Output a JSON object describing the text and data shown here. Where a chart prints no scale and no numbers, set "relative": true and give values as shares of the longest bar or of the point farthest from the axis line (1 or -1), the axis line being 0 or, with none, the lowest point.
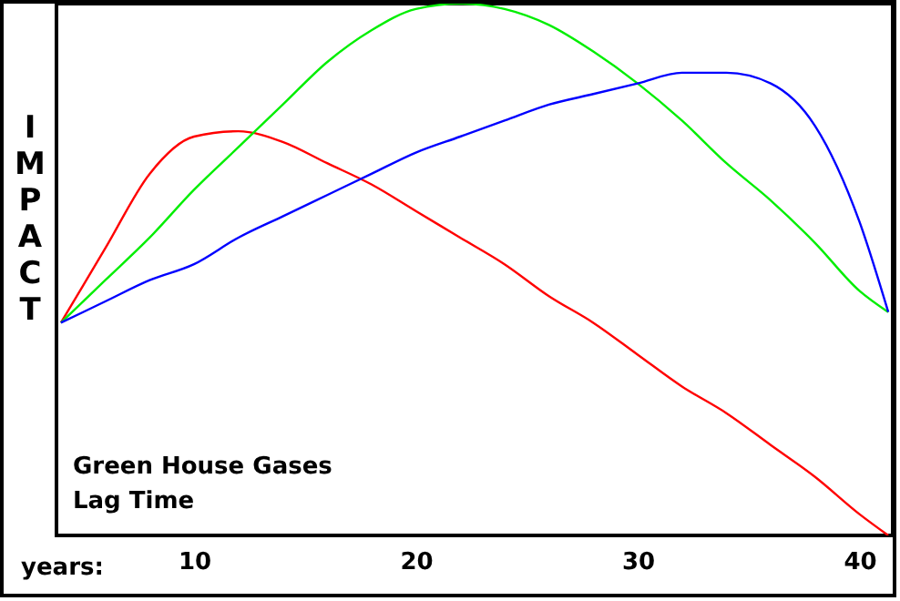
{
  "chart_data": {
    "type": "line",
    "relative": true,
    "ylabel": "IMPACT",
    "xlabel": "years:",
    "annotations": [
      "Green House Gases",
      "Lag Time"
    ],
    "x": [
      4,
      6,
      8,
      10,
      12,
      14,
      16,
      18,
      20,
      22,
      24,
      26,
      28,
      30,
      32,
      34,
      36,
      38,
      40,
      41.3
    ],
    "xlim": [
      3.8,
      41.5
    ],
    "xticks": [
      10,
      20,
      30,
      40
    ],
    "series": [
      {
        "color": "#ff0000",
        "values": [
          0.4,
          0.54,
          0.68,
          0.75,
          0.76,
          0.74,
          0.7,
          0.66,
          0.61,
          0.56,
          0.51,
          0.45,
          0.4,
          0.34,
          0.28,
          0.23,
          0.17,
          0.11,
          0.04,
          0
        ]
      },
      {
        "color": "#00ee00",
        "values": [
          0.4,
          0.48,
          0.56,
          0.65,
          0.73,
          0.81,
          0.89,
          0.95,
          0.99,
          1.0,
          0.99,
          0.96,
          0.91,
          0.85,
          0.78,
          0.7,
          0.63,
          0.55,
          0.46,
          0.42
        ]
      },
      {
        "color": "#0000ff",
        "values": [
          0.4,
          0.44,
          0.48,
          0.51,
          0.56,
          0.6,
          0.64,
          0.68,
          0.72,
          0.75,
          0.78,
          0.81,
          0.83,
          0.85,
          0.87,
          0.87,
          0.85,
          0.77,
          0.59,
          0.42
        ]
      }
    ]
  }
}
